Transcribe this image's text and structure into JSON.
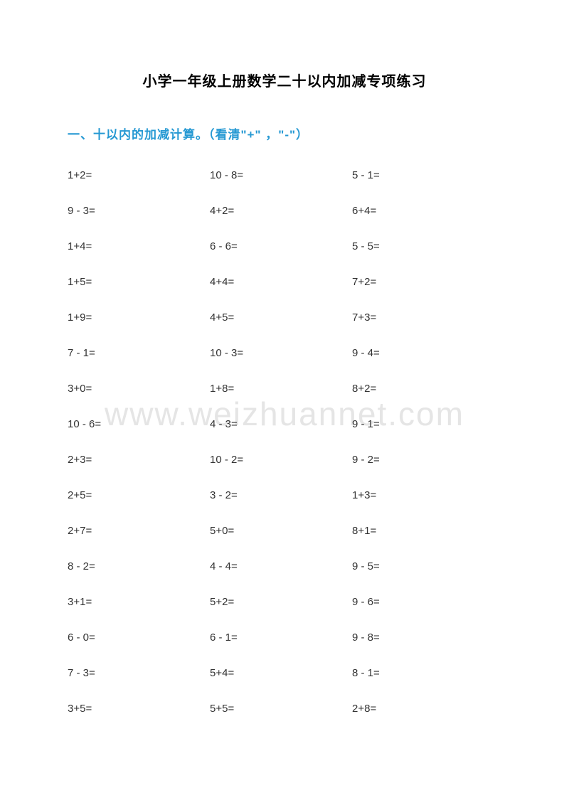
{
  "document": {
    "title": "小学一年级上册数学二十以内加减专项练习",
    "section_header": "一、十以内的加减计算。（看清\"+\" ，\"-\"）",
    "watermark": "www.weizhuannet.com",
    "title_color": "#000000",
    "header_color": "#2699d3",
    "text_color": "#333333",
    "watermark_color": "#e5e5e5",
    "background_color": "#ffffff",
    "title_fontsize": 20,
    "header_fontsize": 17,
    "problem_fontsize": 15,
    "watermark_fontsize": 46
  },
  "problems": {
    "rows": [
      [
        "1+2=",
        "10 - 8=",
        "5 - 1="
      ],
      [
        "9 - 3=",
        "4+2=",
        "6+4="
      ],
      [
        "1+4=",
        "6 - 6=",
        "5 - 5="
      ],
      [
        "1+5=",
        "4+4=",
        "7+2="
      ],
      [
        "1+9=",
        "4+5=",
        "7+3="
      ],
      [
        "7 - 1=",
        "10 - 3=",
        "9 - 4="
      ],
      [
        "3+0=",
        "1+8=",
        "8+2="
      ],
      [
        "10 - 6=",
        "4 - 3=",
        "9 - 1="
      ],
      [
        "2+3=",
        "10 - 2=",
        "9 - 2="
      ],
      [
        "2+5=",
        "3 - 2=",
        "1+3="
      ],
      [
        "2+7=",
        "5+0=",
        "8+1="
      ],
      [
        "8 - 2=",
        "4 - 4=",
        "9 - 5="
      ],
      [
        "3+1=",
        "5+2=",
        "9 - 6="
      ],
      [
        "6 - 0=",
        "6 - 1=",
        "9 - 8="
      ],
      [
        "7 - 3=",
        "5+4=",
        "8 - 1="
      ],
      [
        "3+5=",
        "5+5=",
        "2+8="
      ]
    ]
  }
}
